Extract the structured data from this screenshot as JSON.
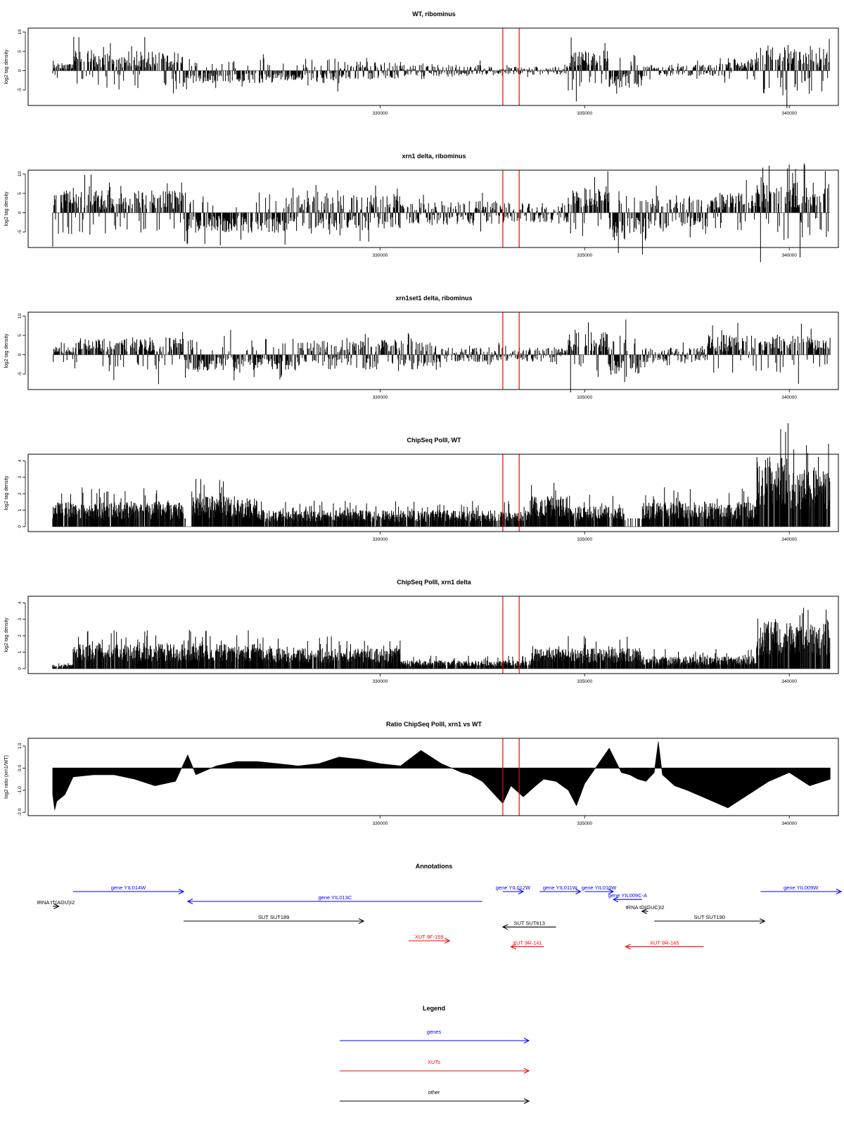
{
  "chart_data": [
    {
      "type": "bar",
      "title": "WT, ribominus",
      "ylabel": "log2 tag density",
      "xlim": [
        321400,
        341200
      ],
      "ylim": [
        -9,
        11
      ],
      "yticks": [
        "10",
        "5",
        "0",
        "-5"
      ],
      "xticks": [
        "330000",
        "335000",
        "340000"
      ],
      "marker_lines": [
        333000,
        333400
      ],
      "x_start": 322000,
      "x_end": 341000,
      "profile": [
        {
          "from": 322000,
          "to": 322500,
          "level": 1.5,
          "sign": 1
        },
        {
          "from": 322500,
          "to": 325200,
          "level": 4,
          "sign": 1
        },
        {
          "from": 325200,
          "to": 329000,
          "level": 2.5,
          "sign": -1
        },
        {
          "from": 329000,
          "to": 330500,
          "level": 1.8,
          "sign": 0
        },
        {
          "from": 330500,
          "to": 332500,
          "level": 1.2,
          "sign": 0
        },
        {
          "from": 332500,
          "to": 334600,
          "level": 0.8,
          "sign": 0
        },
        {
          "from": 334600,
          "to": 335600,
          "level": 4,
          "sign": 1
        },
        {
          "from": 335600,
          "to": 336400,
          "level": 3.5,
          "sign": -1
        },
        {
          "from": 336400,
          "to": 338300,
          "level": 1.2,
          "sign": 0
        },
        {
          "from": 338300,
          "to": 339200,
          "level": 2.5,
          "sign": 1
        },
        {
          "from": 339200,
          "to": 341000,
          "level": 5,
          "sign": 1
        }
      ]
    },
    {
      "type": "bar",
      "title": "xrn1 delta, ribominus",
      "ylabel": "log2 tag density",
      "xlim": [
        321400,
        341200
      ],
      "ylim": [
        -9,
        11
      ],
      "yticks": [
        "10",
        "5",
        "0",
        "-5"
      ],
      "xticks": [
        "330000",
        "335000",
        "340000"
      ],
      "marker_lines": [
        333000,
        333400
      ],
      "x_start": 322000,
      "x_end": 341000,
      "profile": [
        {
          "from": 322000,
          "to": 325200,
          "level": 4.5,
          "sign": 1
        },
        {
          "from": 325200,
          "to": 328000,
          "level": 4,
          "sign": -1
        },
        {
          "from": 328000,
          "to": 330500,
          "level": 3.5,
          "sign": 0
        },
        {
          "from": 330500,
          "to": 333000,
          "level": 2.5,
          "sign": 0
        },
        {
          "from": 333000,
          "to": 334600,
          "level": 2,
          "sign": 0
        },
        {
          "from": 334600,
          "to": 335600,
          "level": 5,
          "sign": 1
        },
        {
          "from": 335600,
          "to": 336500,
          "level": 5.5,
          "sign": -1
        },
        {
          "from": 336500,
          "to": 338000,
          "level": 3.5,
          "sign": 0
        },
        {
          "from": 338000,
          "to": 339200,
          "level": 4,
          "sign": 1
        },
        {
          "from": 339200,
          "to": 341000,
          "level": 6,
          "sign": 1
        }
      ]
    },
    {
      "type": "bar",
      "title": "xrn1set1 delta, ribominus",
      "ylabel": "log2 tag density",
      "xlim": [
        321400,
        341200
      ],
      "ylim": [
        -9,
        11
      ],
      "yticks": [
        "10",
        "5",
        "0",
        "-5"
      ],
      "xticks": [
        "330000",
        "335000",
        "340000"
      ],
      "marker_lines": [
        333000,
        333400
      ],
      "x_start": 322000,
      "x_end": 341000,
      "profile": [
        {
          "from": 322000,
          "to": 322500,
          "level": 1.5,
          "sign": 1
        },
        {
          "from": 322500,
          "to": 325200,
          "level": 3.5,
          "sign": 1
        },
        {
          "from": 325200,
          "to": 328000,
          "level": 3.2,
          "sign": -1
        },
        {
          "from": 328000,
          "to": 331500,
          "level": 3,
          "sign": 0
        },
        {
          "from": 331500,
          "to": 334600,
          "level": 1.5,
          "sign": 0
        },
        {
          "from": 334600,
          "to": 335600,
          "level": 4.5,
          "sign": 1
        },
        {
          "from": 335600,
          "to": 336400,
          "level": 4.5,
          "sign": -1
        },
        {
          "from": 336400,
          "to": 338000,
          "level": 1.5,
          "sign": 0
        },
        {
          "from": 338000,
          "to": 341000,
          "level": 4,
          "sign": 1
        }
      ]
    },
    {
      "type": "bar",
      "title": "ChipSeq PolII, WT",
      "ylabel": "log2 tag density",
      "xlim": [
        321400,
        341200
      ],
      "ylim": [
        -0.3,
        4.4
      ],
      "yticks": [
        "4",
        "3",
        "2",
        "1",
        "0"
      ],
      "xticks": [
        "330000",
        "335000",
        "340000"
      ],
      "marker_lines": [
        333000,
        333400
      ],
      "x_start": 322000,
      "x_end": 341000,
      "profile": [
        {
          "from": 322000,
          "to": 325200,
          "level": 1.2,
          "sign": 1
        },
        {
          "from": 325200,
          "to": 325400,
          "level": 0,
          "sign": 1
        },
        {
          "from": 325400,
          "to": 327000,
          "level": 1.5,
          "sign": 1
        },
        {
          "from": 327000,
          "to": 333700,
          "level": 0.8,
          "sign": 1
        },
        {
          "from": 333700,
          "to": 334600,
          "level": 1.5,
          "sign": 1
        },
        {
          "from": 334600,
          "to": 336000,
          "level": 1.0,
          "sign": 1
        },
        {
          "from": 336000,
          "to": 336400,
          "level": 0,
          "sign": 1
        },
        {
          "from": 336400,
          "to": 339200,
          "level": 1.2,
          "sign": 1
        },
        {
          "from": 339200,
          "to": 340000,
          "level": 3.5,
          "sign": 1
        },
        {
          "from": 340000,
          "to": 341000,
          "level": 2.8,
          "sign": 1
        }
      ]
    },
    {
      "type": "bar",
      "title": "ChipSeq PolII, xrn1 delta",
      "ylabel": "log2 tag density",
      "xlim": [
        321400,
        341200
      ],
      "ylim": [
        -0.3,
        4.4
      ],
      "yticks": [
        "4",
        "3",
        "2",
        "1",
        "0"
      ],
      "xticks": [
        "330000",
        "335000",
        "340000"
      ],
      "marker_lines": [
        333000,
        333400
      ],
      "x_start": 322000,
      "x_end": 341000,
      "profile": [
        {
          "from": 322000,
          "to": 322500,
          "level": 0.2,
          "sign": 1
        },
        {
          "from": 322500,
          "to": 327000,
          "level": 1.2,
          "sign": 1
        },
        {
          "from": 327000,
          "to": 330500,
          "level": 1.0,
          "sign": 1
        },
        {
          "from": 330500,
          "to": 333700,
          "level": 0.4,
          "sign": 1
        },
        {
          "from": 333700,
          "to": 336400,
          "level": 1.0,
          "sign": 1
        },
        {
          "from": 336400,
          "to": 339200,
          "level": 0.6,
          "sign": 1
        },
        {
          "from": 339200,
          "to": 341000,
          "level": 2.3,
          "sign": 1
        }
      ]
    },
    {
      "type": "area",
      "title": "Ratio ChipSeq PolII, xrn1 vs WT",
      "ylabel": "log2 ratio (xrn1/WT)",
      "xlim": [
        321400,
        341200
      ],
      "ylim": [
        -2.15,
        1.35
      ],
      "yticks": [
        "1.0",
        "0.0",
        "-1.0",
        "-2.0"
      ],
      "xticks": [
        "330000",
        "335000",
        "340000"
      ],
      "marker_lines": [
        333000,
        333400
      ],
      "x": [
        322000,
        322050,
        322100,
        322300,
        322500,
        323000,
        323500,
        324000,
        324500,
        325000,
        325300,
        325500,
        326000,
        326500,
        327000,
        327500,
        328000,
        328500,
        329000,
        329500,
        330000,
        330500,
        331000,
        331500,
        332000,
        332200,
        332500,
        333000,
        333200,
        333500,
        333800,
        334000,
        334300,
        334600,
        334800,
        335000,
        335300,
        335600,
        335900,
        336100,
        336300,
        336500,
        336700,
        336800,
        336900,
        337200,
        337500,
        338000,
        338500,
        339000,
        339500,
        340000,
        340500,
        341000
      ],
      "y": [
        -1.2,
        -1.9,
        -1.5,
        -1.2,
        -0.4,
        -0.3,
        -0.3,
        -0.5,
        -0.8,
        -0.6,
        0.6,
        -0.3,
        0.1,
        0.3,
        0.3,
        0.2,
        0.1,
        0.2,
        0.5,
        0.4,
        0.2,
        0.1,
        0.8,
        0.2,
        -0.2,
        -0.3,
        -0.6,
        -1.6,
        -0.8,
        -1.3,
        -0.8,
        -0.5,
        -0.6,
        -1.0,
        -1.7,
        -0.7,
        0.1,
        0.9,
        -0.2,
        -0.3,
        -0.5,
        -0.6,
        -0.2,
        1.2,
        -0.3,
        -0.8,
        -1.0,
        -1.4,
        -1.8,
        -1.2,
        -0.6,
        -0.2,
        -0.8,
        -0.5
      ]
    }
  ],
  "annotations": {
    "title": "Annotations",
    "xlim": [
      321400,
      341200
    ],
    "features": [
      {
        "label": "gene YIL014W",
        "start": 322500,
        "end": 325200,
        "dir": "right",
        "color": "#0000ff",
        "row": 0
      },
      {
        "label": "gene YIL013C",
        "start": 325300,
        "end": 332500,
        "dir": "left",
        "color": "#0000ff",
        "row": 1
      },
      {
        "label": "gene YIL012W",
        "start": 333000,
        "end": 333500,
        "dir": "right",
        "color": "#0000ff",
        "row": 0
      },
      {
        "label": "gene YIL011W",
        "start": 333900,
        "end": 334900,
        "dir": "right",
        "color": "#0000ff",
        "row": 0
      },
      {
        "label": "gene YIL010W",
        "start": 335000,
        "end": 335700,
        "dir": "right",
        "color": "#0000ff",
        "row": 0
      },
      {
        "label": "gene YIL009C-A",
        "start": 335700,
        "end": 336400,
        "dir": "left",
        "color": "#0000ff",
        "row": 0.8
      },
      {
        "label": "gene YIL009W",
        "start": 339300,
        "end": 341400,
        "dir": "right",
        "color": "#0000ff",
        "row": 0
      },
      {
        "label": "tRNA tT(AGU)I2",
        "start": 322000,
        "end": 322150,
        "dir": "right",
        "color": "#000000",
        "row": 1.5
      },
      {
        "label": "tRNA tD(GUC)I2",
        "start": 336400,
        "end": 336550,
        "dir": "left",
        "color": "#000000",
        "row": 2
      },
      {
        "label": "SUT SUT189",
        "start": 325200,
        "end": 329600,
        "dir": "right",
        "color": "#000000",
        "row": 3
      },
      {
        "label": "SUT SUT613",
        "start": 333000,
        "end": 334300,
        "dir": "left",
        "color": "#000000",
        "row": 3.6
      },
      {
        "label": "SUT SUT190",
        "start": 336700,
        "end": 339400,
        "dir": "right",
        "color": "#000000",
        "row": 3
      },
      {
        "label": "XUT 9F-159",
        "start": 330700,
        "end": 331700,
        "dir": "right",
        "color": "#ff0000",
        "row": 5
      },
      {
        "label": "XUT 9R-141",
        "start": 333200,
        "end": 334000,
        "dir": "left",
        "color": "#ff0000",
        "row": 5.6
      },
      {
        "label": "XUT 9R-145",
        "start": 336000,
        "end": 337900,
        "dir": "left",
        "color": "#ff0000",
        "row": 5.6
      }
    ]
  },
  "legend": {
    "title": "Legend",
    "items": [
      {
        "label": "genes",
        "color": "#0000ff"
      },
      {
        "label": "XUTs",
        "color": "#ff0000"
      },
      {
        "label": "other",
        "color": "#000000"
      }
    ]
  }
}
